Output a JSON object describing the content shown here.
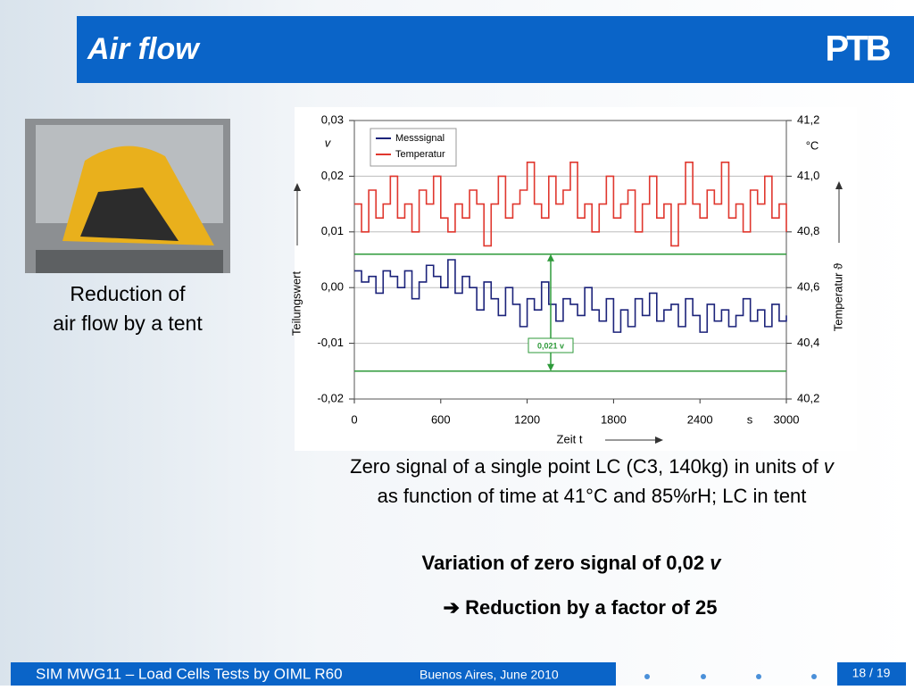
{
  "header": {
    "title": "Air flow",
    "logo": "PTB"
  },
  "photo_caption": [
    "Reduction of",
    "air flow by a tent"
  ],
  "chart_data": {
    "type": "line",
    "x": [
      0,
      50,
      100,
      150,
      200,
      250,
      300,
      350,
      400,
      450,
      500,
      550,
      600,
      650,
      700,
      750,
      800,
      850,
      900,
      950,
      1000,
      1050,
      1100,
      1150,
      1200,
      1250,
      1300,
      1350,
      1400,
      1450,
      1500,
      1550,
      1600,
      1650,
      1700,
      1750,
      1800,
      1850,
      1900,
      1950,
      2000,
      2050,
      2100,
      2150,
      2200,
      2250,
      2300,
      2350,
      2400,
      2450,
      2500,
      2550,
      2600,
      2650,
      2700,
      2750,
      2800,
      2850,
      2900,
      2950,
      3000
    ],
    "series": [
      {
        "name": "Messsignal",
        "color": "#1c237a",
        "values": [
          0.003,
          0.001,
          0.002,
          -0.001,
          0.003,
          0.002,
          0.0,
          0.003,
          -0.002,
          0.001,
          0.004,
          0.002,
          0.0,
          0.005,
          -0.001,
          0.002,
          0.0,
          -0.004,
          0.001,
          -0.002,
          -0.005,
          0.0,
          -0.003,
          -0.007,
          -0.002,
          -0.004,
          0.001,
          -0.003,
          -0.006,
          -0.002,
          -0.003,
          -0.005,
          0.0,
          -0.004,
          -0.006,
          -0.002,
          -0.008,
          -0.004,
          -0.007,
          -0.002,
          -0.005,
          -0.001,
          -0.006,
          -0.004,
          -0.003,
          -0.007,
          -0.002,
          -0.005,
          -0.008,
          -0.003,
          -0.006,
          -0.004,
          -0.007,
          -0.005,
          -0.002,
          -0.006,
          -0.004,
          -0.007,
          -0.003,
          -0.006,
          -0.005
        ]
      },
      {
        "name": "Temperatur",
        "color": "#e0372e",
        "axis": "y2",
        "values": [
          40.9,
          40.8,
          40.95,
          40.85,
          40.9,
          41.0,
          40.85,
          40.9,
          40.8,
          40.95,
          40.9,
          41.0,
          40.85,
          40.8,
          40.9,
          40.85,
          40.95,
          40.9,
          40.75,
          40.9,
          41.0,
          40.85,
          40.9,
          40.95,
          41.05,
          40.9,
          40.85,
          41.0,
          40.9,
          40.95,
          41.05,
          40.85,
          40.9,
          40.8,
          40.9,
          41.0,
          40.85,
          40.9,
          40.95,
          40.8,
          40.9,
          41.0,
          40.85,
          40.9,
          40.75,
          40.9,
          41.05,
          40.9,
          40.85,
          40.95,
          40.9,
          41.05,
          40.85,
          40.9,
          40.8,
          40.95,
          40.9,
          41.0,
          40.85,
          40.9,
          40.8
        ]
      }
    ],
    "xlim": [
      0,
      3000
    ],
    "xticks": [
      0,
      600,
      1200,
      1800,
      2400,
      3000
    ],
    "x_unit": "s",
    "ylim": [
      -0.02,
      0.03
    ],
    "yticks": [
      {
        "value": -0.02,
        "label": "-0,02"
      },
      {
        "value": -0.01,
        "label": "-0,01"
      },
      {
        "value": 0,
        "label": "0,00"
      },
      {
        "value": 0.01,
        "label": "0,01"
      },
      {
        "value": 0.02,
        "label": "0,02"
      },
      {
        "value": 0.03,
        "label": "0,03"
      }
    ],
    "y2lim": [
      40.2,
      41.2
    ],
    "y2ticks": [
      {
        "value": 40.2,
        "label": "40,2"
      },
      {
        "value": 40.4,
        "label": "40,4"
      },
      {
        "value": 40.6,
        "label": "40,6"
      },
      {
        "value": 40.8,
        "label": "40,8"
      },
      {
        "value": 41.0,
        "label": "41,0"
      },
      {
        "value": 41.2,
        "label": "41,2"
      }
    ],
    "xlabel": "Zeit t",
    "ylabel": "Teilungswert",
    "y_unit": "v",
    "y2label": "Temperatur ϑ",
    "y2_unit": "°C",
    "grid": true,
    "legend": "upper left",
    "reference_lines": [
      0.006,
      -0.015
    ],
    "reference_color": "#2e9a3a",
    "annotation": "0,021 v"
  },
  "caption": {
    "line1": "Zero signal of a single point LC (C3, 140kg) in units of",
    "line1_symbol": "v",
    "line2": "as function of time at 41°C and 85%rH; LC in tent"
  },
  "conclusion": {
    "line1": "Variation of zero signal of 0,02",
    "line1_symbol": "v",
    "line2": "➔ Reduction by a factor of 25"
  },
  "footer": {
    "left": "SIM MWG11 – Load Cells Tests by OIML R60",
    "date": "Buenos Aires, June 2010",
    "page": "18 / 19"
  }
}
